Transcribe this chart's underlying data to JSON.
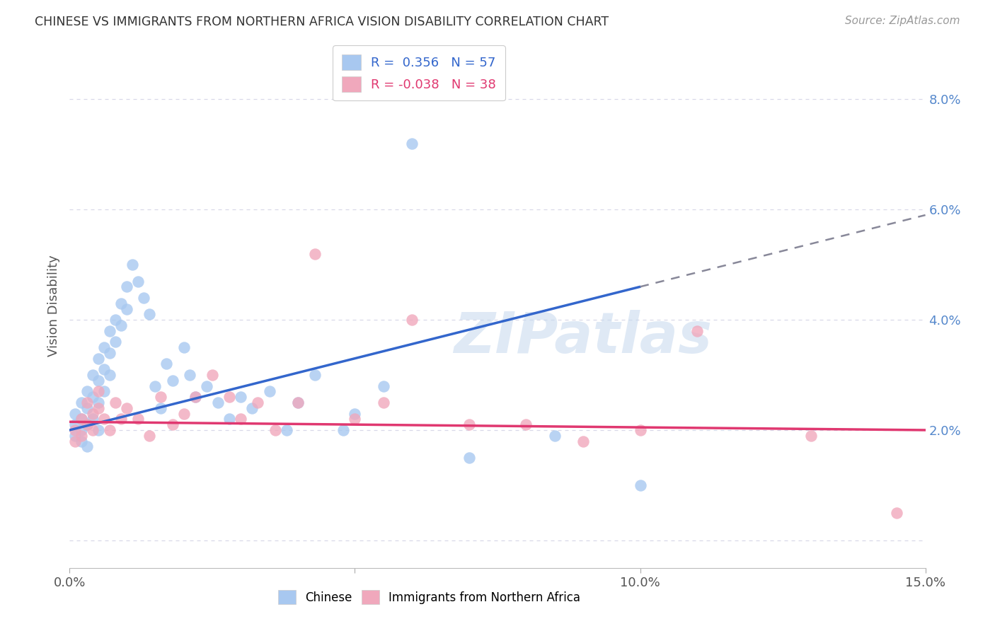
{
  "title": "CHINESE VS IMMIGRANTS FROM NORTHERN AFRICA VISION DISABILITY CORRELATION CHART",
  "source": "Source: ZipAtlas.com",
  "ylabel": "Vision Disability",
  "xlim": [
    0.0,
    0.15
  ],
  "ylim": [
    -0.005,
    0.09
  ],
  "yticks": [
    0.0,
    0.02,
    0.04,
    0.06,
    0.08
  ],
  "ytick_labels": [
    "",
    "2.0%",
    "4.0%",
    "6.0%",
    "8.0%"
  ],
  "xticks": [
    0.0,
    0.05,
    0.1,
    0.15
  ],
  "xtick_labels": [
    "0.0%",
    "",
    "10.0%",
    "15.0%"
  ],
  "chinese_R": 0.356,
  "chinese_N": 57,
  "northern_africa_R": -0.038,
  "northern_africa_N": 38,
  "chinese_color": "#a8c8f0",
  "northern_africa_color": "#f0a8bc",
  "chinese_line_color": "#3366cc",
  "northern_africa_line_color": "#e03870",
  "chinese_scatter_x": [
    0.001,
    0.001,
    0.001,
    0.002,
    0.002,
    0.002,
    0.002,
    0.003,
    0.003,
    0.003,
    0.003,
    0.004,
    0.004,
    0.004,
    0.005,
    0.005,
    0.005,
    0.005,
    0.006,
    0.006,
    0.006,
    0.007,
    0.007,
    0.007,
    0.008,
    0.008,
    0.009,
    0.009,
    0.01,
    0.01,
    0.011,
    0.012,
    0.013,
    0.014,
    0.015,
    0.016,
    0.017,
    0.018,
    0.02,
    0.021,
    0.022,
    0.024,
    0.026,
    0.028,
    0.03,
    0.032,
    0.035,
    0.038,
    0.04,
    0.043,
    0.048,
    0.05,
    0.055,
    0.06,
    0.07,
    0.085,
    0.1
  ],
  "chinese_scatter_y": [
    0.021,
    0.023,
    0.019,
    0.025,
    0.022,
    0.02,
    0.018,
    0.027,
    0.024,
    0.021,
    0.017,
    0.03,
    0.026,
    0.022,
    0.033,
    0.029,
    0.025,
    0.02,
    0.035,
    0.031,
    0.027,
    0.038,
    0.034,
    0.03,
    0.04,
    0.036,
    0.043,
    0.039,
    0.046,
    0.042,
    0.05,
    0.047,
    0.044,
    0.041,
    0.028,
    0.024,
    0.032,
    0.029,
    0.035,
    0.03,
    0.026,
    0.028,
    0.025,
    0.022,
    0.026,
    0.024,
    0.027,
    0.02,
    0.025,
    0.03,
    0.02,
    0.023,
    0.028,
    0.072,
    0.015,
    0.019,
    0.01
  ],
  "northern_africa_scatter_x": [
    0.001,
    0.001,
    0.002,
    0.002,
    0.003,
    0.003,
    0.004,
    0.004,
    0.005,
    0.005,
    0.006,
    0.007,
    0.008,
    0.009,
    0.01,
    0.012,
    0.014,
    0.016,
    0.018,
    0.02,
    0.022,
    0.025,
    0.028,
    0.03,
    0.033,
    0.036,
    0.04,
    0.043,
    0.05,
    0.055,
    0.06,
    0.07,
    0.08,
    0.09,
    0.1,
    0.11,
    0.13,
    0.145
  ],
  "northern_africa_scatter_y": [
    0.02,
    0.018,
    0.022,
    0.019,
    0.025,
    0.021,
    0.023,
    0.02,
    0.027,
    0.024,
    0.022,
    0.02,
    0.025,
    0.022,
    0.024,
    0.022,
    0.019,
    0.026,
    0.021,
    0.023,
    0.026,
    0.03,
    0.026,
    0.022,
    0.025,
    0.02,
    0.025,
    0.052,
    0.022,
    0.025,
    0.04,
    0.021,
    0.021,
    0.018,
    0.02,
    0.038,
    0.019,
    0.005
  ],
  "watermark_text": "ZIPatlas",
  "background_color": "#ffffff",
  "grid_color": "#d8d8e8"
}
